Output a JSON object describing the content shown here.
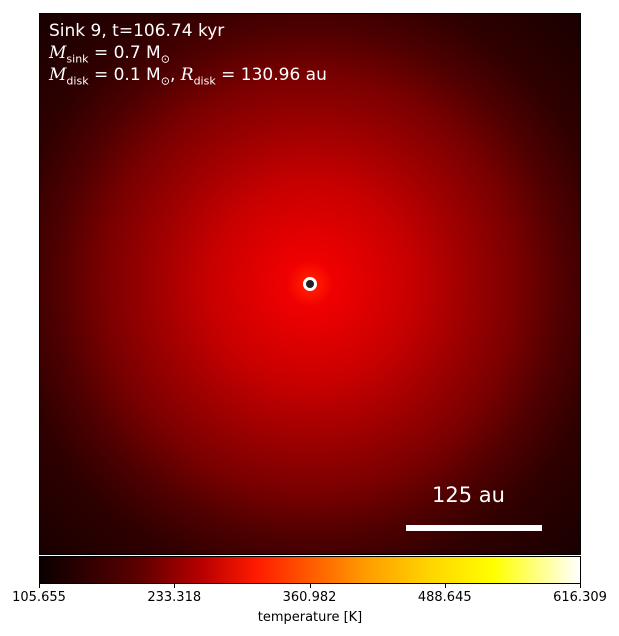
{
  "chart_data": {
    "type": "heatmap",
    "annotation": {
      "line1": "Sink 9, t=106.74 kyr",
      "m_sink_symbol": "M",
      "m_sink_sub": "sink",
      "m_sink_value": " = 0.7 M",
      "m_sink_unit_sub": "⊙",
      "m_disk_symbol": "M",
      "m_disk_sub": "disk",
      "m_disk_value": " = 0.1 M",
      "m_disk_unit_sub": "⊙",
      "r_disk_symbol": "R",
      "r_disk_sub": "disk",
      "r_disk_value": " = 130.96 au"
    },
    "scalebar_label": "125 au",
    "colorbar": {
      "label": "temperature [K]",
      "ticks": [
        "105.655",
        "233.318",
        "360.982",
        "488.645",
        "616.309"
      ],
      "range": [
        105.655,
        616.309
      ],
      "colormap": "hot"
    }
  }
}
